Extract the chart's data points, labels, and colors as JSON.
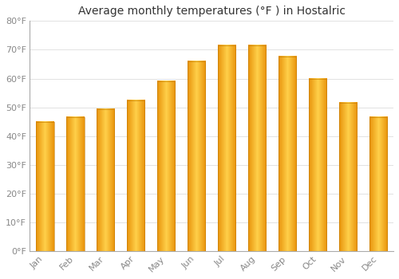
{
  "title": "Average monthly temperatures (°F ) in Hostalric",
  "months": [
    "Jan",
    "Feb",
    "Mar",
    "Apr",
    "May",
    "Jun",
    "Jul",
    "Aug",
    "Sep",
    "Oct",
    "Nov",
    "Dec"
  ],
  "values": [
    45,
    46.5,
    49.5,
    52.5,
    59,
    66,
    71.5,
    71.5,
    67.5,
    60,
    51.5,
    46.5
  ],
  "bar_color_dark": "#E8920A",
  "bar_color_light": "#FFD04A",
  "bar_edge_color": "#8B6500",
  "ylim": [
    0,
    80
  ],
  "yticks": [
    0,
    10,
    20,
    30,
    40,
    50,
    60,
    70,
    80
  ],
  "ytick_labels": [
    "0°F",
    "10°F",
    "20°F",
    "30°F",
    "40°F",
    "50°F",
    "60°F",
    "70°F",
    "80°F"
  ],
  "bg_color": "#FFFFFF",
  "plot_bg_color": "#FFFFFF",
  "grid_color": "#DDDDDD",
  "title_fontsize": 10,
  "tick_fontsize": 8,
  "label_color": "#888888",
  "spine_color": "#AAAAAA"
}
